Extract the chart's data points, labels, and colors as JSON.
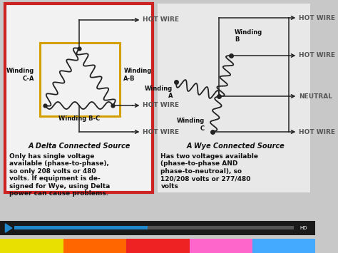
{
  "bg_color": "#c8c8c8",
  "left_box_bg": "#f0f0f0",
  "left_box_border": "#cc2222",
  "delta_title": "A Delta Connected Source",
  "wye_title": "A Wye Connected Source",
  "delta_text": "Only has single voltage\navailable (phase-to-phase),\nso only 208 volts or 480\nvolts. If equipment is de-\nsigned for Wye, using Delta\npower can cause problems.",
  "wye_text": "Has two voltages available\n(phase-to-phase AND\nphase-to-neutroal), so\n120/208 volts or 277/480\nvolts",
  "hot_wire_label": "HOT WIRE",
  "neutral_label": "NEUTRAL",
  "winding_ca": "Winding\nC-A",
  "winding_ab": "Winding\nA-B",
  "winding_bc": "Winding B-C",
  "winding_a": "Winding\nA",
  "winding_b": "Winding\nB",
  "winding_c": "Winding\nC",
  "yellow_box_color": "#d4a000",
  "line_color": "#222222",
  "text_color": "#111111",
  "video_bar_color": "#2a2a2a",
  "video_progress_color": "#2288cc",
  "play_button_color": "#2288cc"
}
